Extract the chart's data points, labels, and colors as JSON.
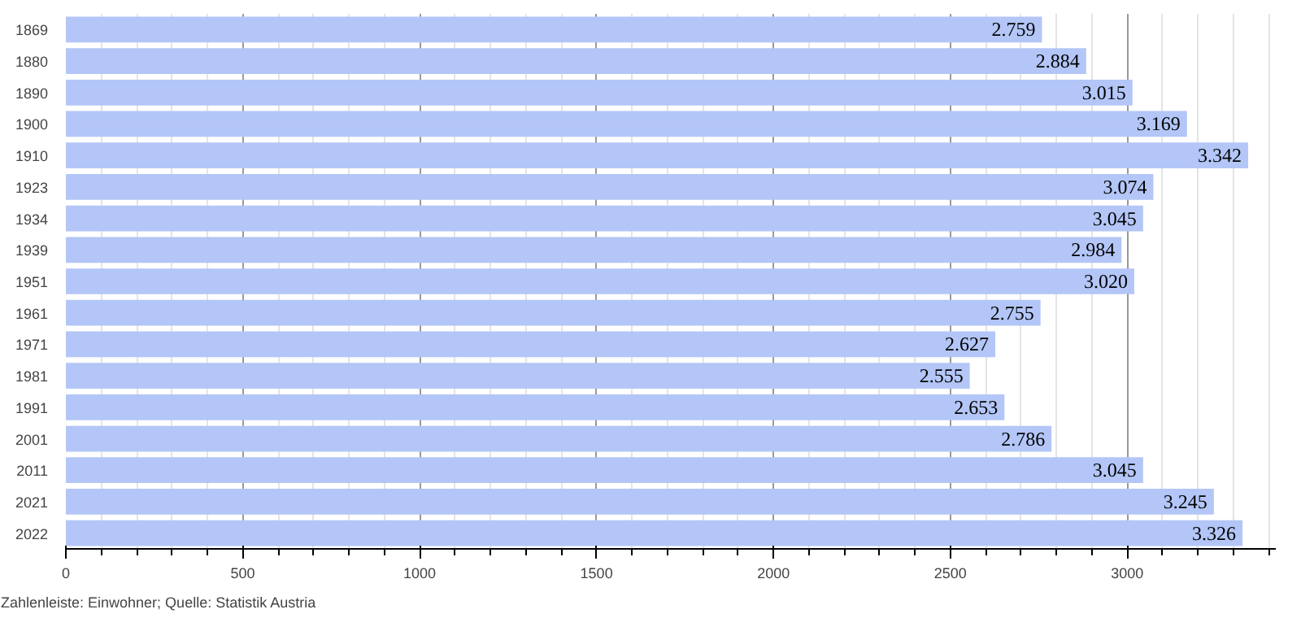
{
  "chart_data": {
    "type": "bar",
    "orientation": "horizontal",
    "categories": [
      "1869",
      "1880",
      "1890",
      "1900",
      "1910",
      "1923",
      "1934",
      "1939",
      "1951",
      "1961",
      "1971",
      "1981",
      "1991",
      "2001",
      "2011",
      "2021",
      "2022"
    ],
    "values": [
      2759,
      2884,
      3015,
      3169,
      3342,
      3074,
      3045,
      2984,
      3020,
      2755,
      2627,
      2555,
      2653,
      2786,
      3045,
      3245,
      3326
    ],
    "value_labels": [
      "2.759",
      "2.884",
      "3.015",
      "3.169",
      "3.342",
      "3.074",
      "3.045",
      "2.984",
      "3.020",
      "2.755",
      "2.627",
      "2.555",
      "2.653",
      "2.786",
      "3.045",
      "3.245",
      "3.326"
    ],
    "color": "#b3c6f7",
    "xlim": [
      0,
      3420
    ],
    "xticks": [
      0,
      500,
      1000,
      1500,
      2000,
      2500,
      3000
    ],
    "grid": "x",
    "annotations": [
      "Zahlenleiste: Einwohner; Quelle: Statistik Austria"
    ]
  }
}
